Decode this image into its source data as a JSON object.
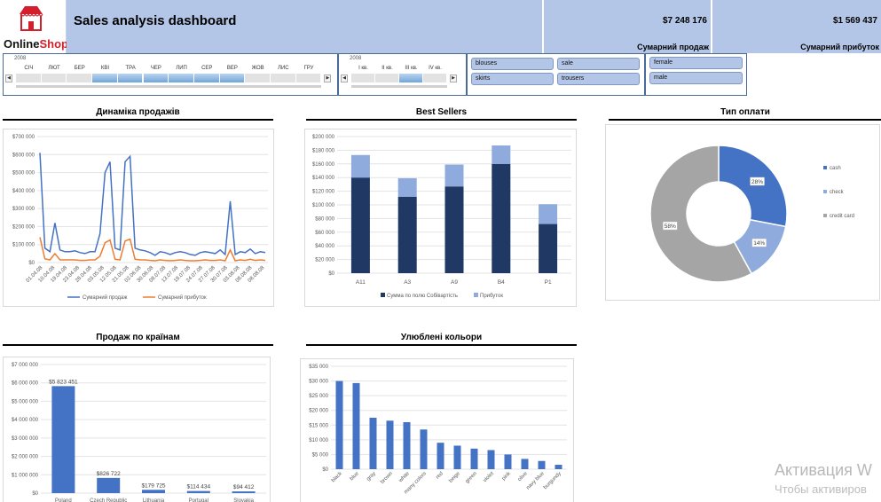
{
  "header": {
    "logo_text_a": "Online",
    "logo_text_b": "Shop",
    "title": "Sales analysis dashboard",
    "kpis": [
      {
        "value": "$7 248 176",
        "label": "Сумарний продаж"
      },
      {
        "value": "$1 569 437",
        "label": "Сумарний прибуток"
      }
    ]
  },
  "timeline_months": {
    "year": "2008",
    "labels": [
      "СІЧ",
      "ЛЮТ",
      "БЕР",
      "КВІ",
      "ТРА",
      "ЧЕР",
      "ЛИП",
      "СЕР",
      "ВЕР",
      "ЖОВ",
      "ЛИС",
      "ГРУ"
    ],
    "selected_from": 3,
    "selected_to": 8
  },
  "timeline_quarters": {
    "year": "2008",
    "labels": [
      "I кв.",
      "II кв.",
      "III кв.",
      "IV кв."
    ],
    "selected": 2
  },
  "slicer_category": [
    "blouses",
    "sale",
    "skirts",
    "trousers"
  ],
  "slicer_gender": [
    "female",
    "male"
  ],
  "colors": {
    "blue": "#4472c4",
    "orange": "#ed7d31",
    "navy": "#203864",
    "light_blue": "#8faadc",
    "gray": "#a5a5a5",
    "header": "#b4c6e7"
  },
  "chart_data": [
    {
      "id": "sales_dynamics",
      "type": "line",
      "title": "Динаміка продажів",
      "ylim": [
        0,
        700000
      ],
      "yticks": [
        "$0",
        "$100 000",
        "$200 000",
        "$300 000",
        "$400 000",
        "$500 000",
        "$600 000",
        "$700 000"
      ],
      "xtick_labels": [
        "01.04.08",
        "10.04.08",
        "19.04.08",
        "23.04.08",
        "28.04.08",
        "03.05.08",
        "12.05.08",
        "21.05.08",
        "02.06.08",
        "30.06.08",
        "08.07.08",
        "13.07.08",
        "18.07.08",
        "24.07.08",
        "27.07.08",
        "30.07.08",
        "03.08.08",
        "08.08.08",
        "08.08.08"
      ],
      "series": [
        {
          "name": "Сумарний продаж",
          "values": [
            610000,
            80000,
            60000,
            220000,
            70000,
            60000,
            60000,
            65000,
            55000,
            50000,
            60000,
            60000,
            160000,
            500000,
            560000,
            80000,
            70000,
            560000,
            590000,
            80000,
            70000,
            65000,
            55000,
            40000,
            60000,
            55000,
            45000,
            55000,
            60000,
            55000,
            45000,
            40000,
            55000,
            60000,
            55000,
            50000,
            70000,
            45000,
            340000,
            45000,
            60000,
            55000,
            75000,
            50000,
            60000,
            55000
          ]
        },
        {
          "name": "Сумарний прибуток",
          "values": [
            140000,
            20000,
            15000,
            50000,
            15000,
            15000,
            15000,
            15000,
            12000,
            12000,
            15000,
            15000,
            35000,
            110000,
            125000,
            18000,
            15000,
            120000,
            130000,
            18000,
            15000,
            15000,
            12000,
            10000,
            15000,
            12000,
            10000,
            12000,
            15000,
            12000,
            10000,
            10000,
            12000,
            15000,
            12000,
            12000,
            15000,
            10000,
            70000,
            10000,
            15000,
            12000,
            18000,
            12000,
            15000,
            12000
          ]
        }
      ]
    },
    {
      "id": "best_sellers",
      "type": "bar",
      "title": "Best Sellers",
      "ylim": [
        0,
        200000
      ],
      "yticks": [
        "$0",
        "$20 000",
        "$40 000",
        "$60 000",
        "$80 000",
        "$100 000",
        "$120 000",
        "$140 000",
        "$160 000",
        "$180 000",
        "$200 000"
      ],
      "categories": [
        "A11",
        "A3",
        "A9",
        "B4",
        "P1"
      ],
      "series": [
        {
          "name": "Сумма по полю Собівартість",
          "values": [
            140000,
            112000,
            127000,
            160000,
            72000
          ]
        },
        {
          "name": "Прибуток",
          "values": [
            33000,
            27000,
            32000,
            27000,
            29000
          ]
        }
      ]
    },
    {
      "id": "payment_type",
      "type": "pie",
      "title": "Тип оплати",
      "labels": [
        "cash",
        "check",
        "credit card"
      ],
      "values": [
        28,
        14,
        58
      ],
      "value_labels": [
        "28%",
        "14%",
        "58%"
      ]
    },
    {
      "id": "sales_by_country",
      "type": "bar",
      "title": "Продаж по країнам",
      "ylim": [
        0,
        7000000
      ],
      "yticks": [
        "$0",
        "$1 000 000",
        "$2 000 000",
        "$3 000 000",
        "$4 000 000",
        "$5 000 000",
        "$6 000 000",
        "$7 000 000"
      ],
      "categories": [
        "Poland",
        "Czech Republic",
        "Lithuania",
        "Portugal",
        "Slovakia"
      ],
      "values": [
        5823451,
        826722,
        179725,
        114434,
        94412
      ],
      "value_labels": [
        "$5 823 451",
        "$826 722",
        "$179 725",
        "$114 434",
        "$94 412"
      ]
    },
    {
      "id": "favorite_colors",
      "type": "bar",
      "title": "Улюблені кольори",
      "ylim": [
        0,
        35000
      ],
      "yticks": [
        "$0",
        "$5 000",
        "$10 000",
        "$15 000",
        "$20 000",
        "$25 000",
        "$30 000",
        "$35 000"
      ],
      "categories": [
        "black",
        "blue",
        "gray",
        "brown",
        "white",
        "many colors",
        "red",
        "beige",
        "green",
        "violet",
        "pink",
        "olive",
        "navy blue",
        "burgundy"
      ],
      "values": [
        30000,
        29300,
        17500,
        16500,
        16000,
        13500,
        9000,
        8000,
        7000,
        6500,
        5000,
        3500,
        2800,
        1500
      ]
    }
  ],
  "watermark": {
    "line1": "Активация W",
    "line2": "Чтобы активиров"
  }
}
